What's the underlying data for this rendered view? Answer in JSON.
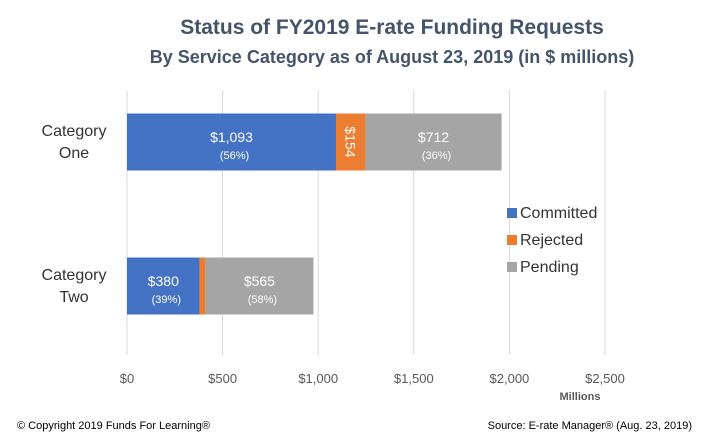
{
  "chart_data": {
    "type": "bar",
    "orientation": "horizontal",
    "stacked": true,
    "title": "Status of FY2019 E-rate Funding Requests",
    "subtitle": "By Service Category as of August 23, 2019 (in $ millions)",
    "categories": [
      "Category One",
      "Category Two"
    ],
    "category_lines": [
      [
        "Category",
        "One"
      ],
      [
        "Category",
        "Two"
      ]
    ],
    "series": [
      {
        "name": "Committed",
        "color": "#4472c4",
        "values": [
          1093,
          380
        ],
        "labels": [
          "$1,093",
          "$380"
        ],
        "pct_labels": [
          "(56%)",
          "(39%)"
        ]
      },
      {
        "name": "Rejected",
        "color": "#ed7d31",
        "values": [
          154,
          30
        ],
        "labels": [
          "$154",
          ""
        ],
        "pct_labels": [
          "",
          ""
        ]
      },
      {
        "name": "Pending",
        "color": "#a5a5a5",
        "values": [
          712,
          565
        ],
        "labels": [
          "$712",
          "$565"
        ],
        "pct_labels": [
          "(36%)",
          "(58%)"
        ]
      }
    ],
    "xlim": [
      0,
      2500
    ],
    "xticks": [
      0,
      500,
      1000,
      1500,
      2000,
      2500
    ],
    "xtick_labels": [
      "$0",
      "$500",
      "$1,000",
      "$1,500",
      "$2,000",
      "$2,500"
    ],
    "xlabel": "Millions",
    "grid": "vertical",
    "legend_position": "right"
  },
  "footer": {
    "copyright": "© Copyright 2019 Funds For Learning®",
    "source": "Source: E-rate Manager® (Aug. 23, 2019)"
  }
}
